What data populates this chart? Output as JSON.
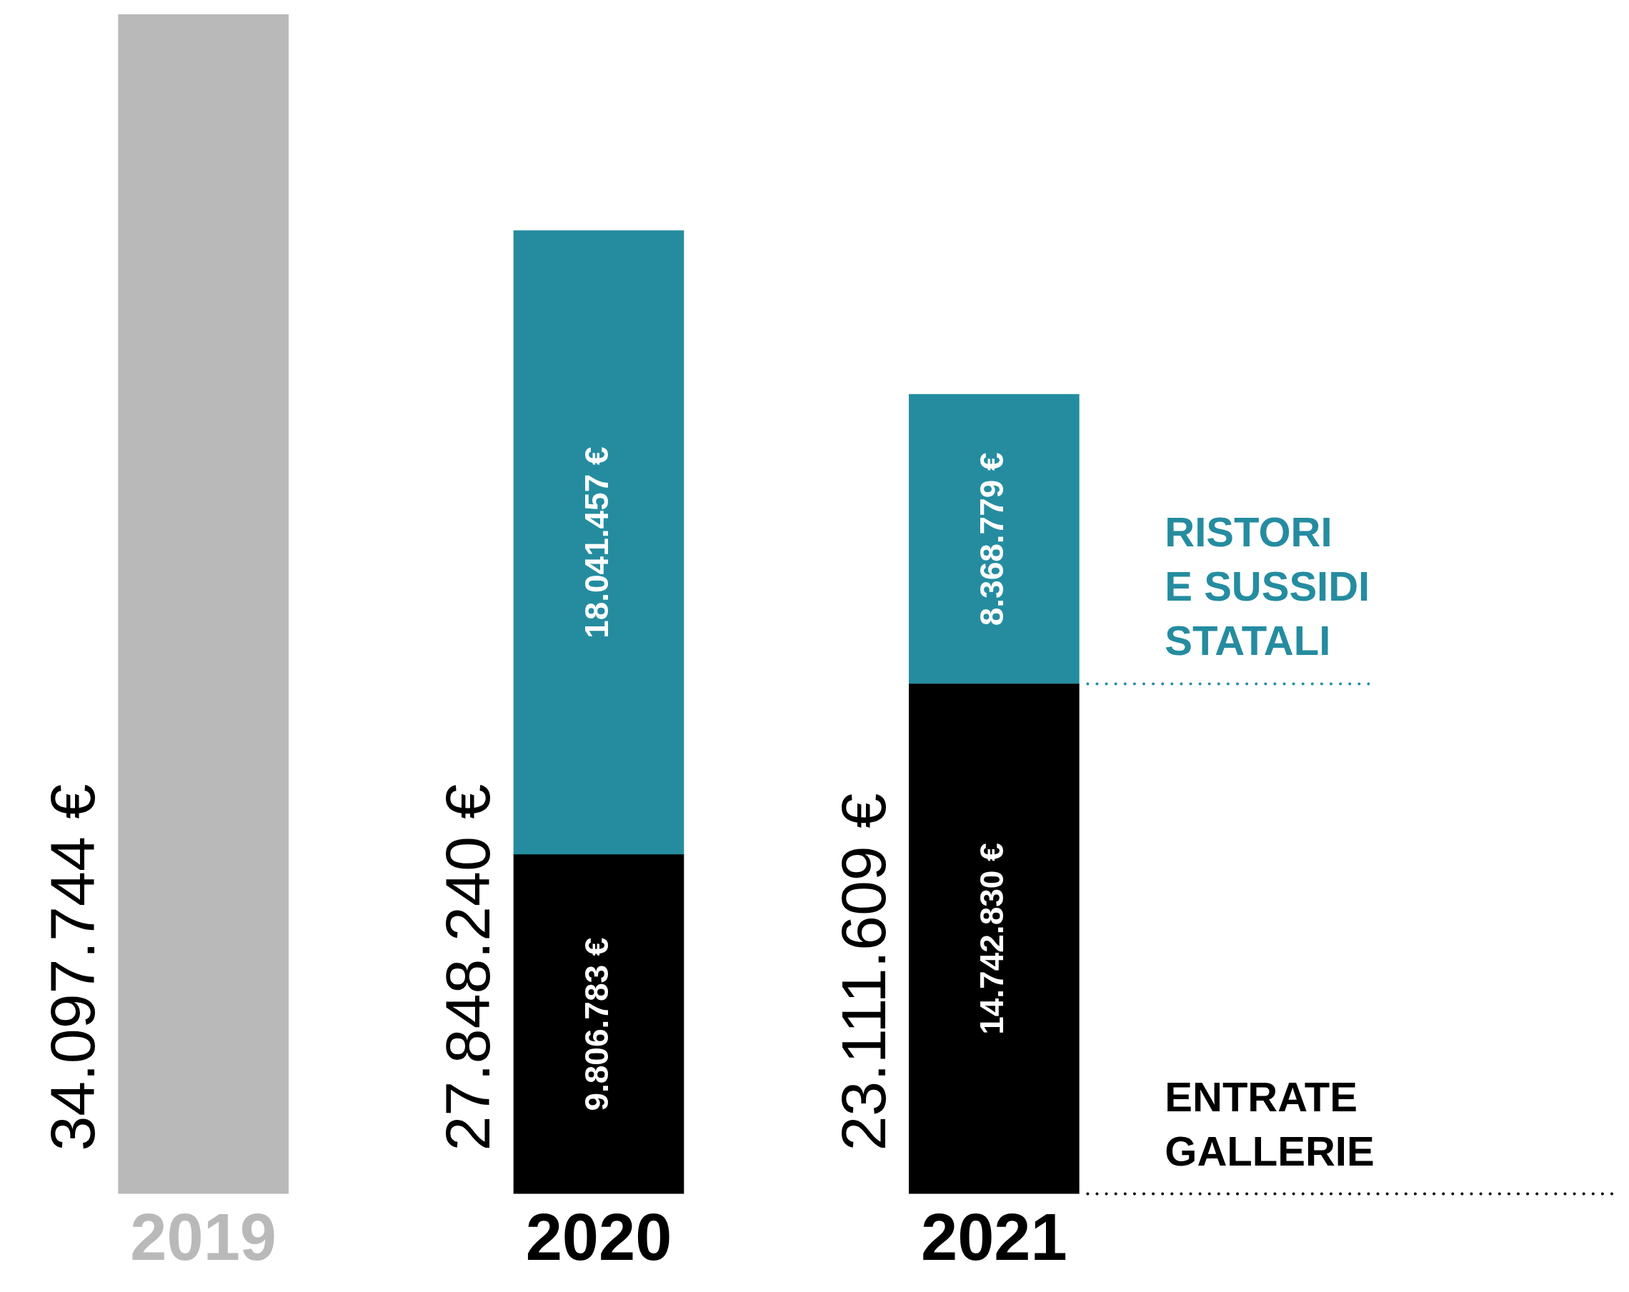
{
  "chart_data": {
    "type": "bar",
    "stacked": true,
    "categories": [
      "2019",
      "2020",
      "2021"
    ],
    "series": [
      {
        "color": "#b9b9b9",
        "values": [
          34097744,
          null,
          null
        ]
      },
      {
        "name": "ENTRATE GALLERIE",
        "color": "#000000",
        "values": [
          null,
          9806783,
          14742830
        ],
        "value_labels": [
          null,
          "9.806.783 €",
          "14.742.830 €"
        ]
      },
      {
        "name": "RISTORI E SUSSIDI STATALI",
        "color": "#258ca0",
        "values": [
          null,
          18041457,
          8368779
        ],
        "value_labels": [
          null,
          "18.041.457 €",
          "8.368.779 €"
        ]
      }
    ],
    "totals": [
      "34.097.744 €",
      "27.848.240 €",
      "23.111.609 €"
    ]
  }
}
